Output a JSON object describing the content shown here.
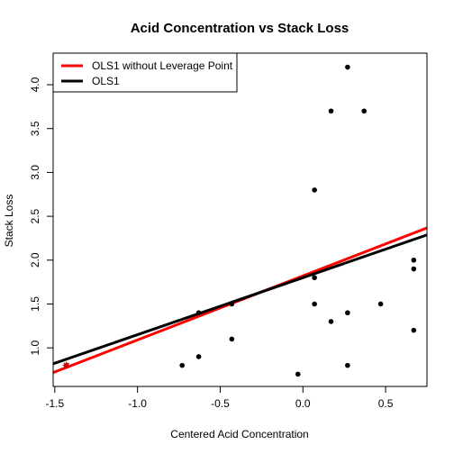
{
  "chart_data": {
    "type": "scatter",
    "title": "Acid Concentration vs Stack Loss",
    "xlabel": "Centered Acid Concentration",
    "ylabel": "Stack Loss",
    "xlim": [
      -1.51,
      0.75
    ],
    "ylim": [
      0.56,
      4.36
    ],
    "x_ticks": [
      -1.5,
      -1.0,
      -0.5,
      0.0,
      0.5
    ],
    "x_tick_labels": [
      "-1.5",
      "-1.0",
      "-0.5",
      "0.0",
      "0.5"
    ],
    "y_ticks": [
      1.0,
      1.5,
      2.0,
      2.5,
      3.0,
      3.5,
      4.0
    ],
    "y_tick_labels": [
      "1.0",
      "1.5",
      "2.0",
      "2.5",
      "3.0",
      "3.5",
      "4.0"
    ],
    "grid": false,
    "legend_position": "top-left",
    "points": [
      {
        "x": 0.27,
        "y": 4.2
      },
      {
        "x": 0.17,
        "y": 3.7
      },
      {
        "x": 0.37,
        "y": 3.7
      },
      {
        "x": 0.07,
        "y": 2.8
      },
      {
        "x": 0.67,
        "y": 2.0
      },
      {
        "x": 0.67,
        "y": 1.9
      },
      {
        "x": 0.07,
        "y": 1.8
      },
      {
        "x": 0.07,
        "y": 1.5
      },
      {
        "x": 0.47,
        "y": 1.5
      },
      {
        "x": -0.43,
        "y": 1.5
      },
      {
        "x": -0.63,
        "y": 1.4
      },
      {
        "x": 0.27,
        "y": 1.4
      },
      {
        "x": 0.17,
        "y": 1.3
      },
      {
        "x": 0.67,
        "y": 1.2
      },
      {
        "x": -0.43,
        "y": 1.1
      },
      {
        "x": -0.63,
        "y": 0.9
      },
      {
        "x": -0.73,
        "y": 0.8
      },
      {
        "x": 0.27,
        "y": 0.8
      },
      {
        "x": -0.03,
        "y": 0.7
      }
    ],
    "leverage_point": {
      "x": -1.43,
      "y": 0.8,
      "color": "#cc0000"
    },
    "point_color": "#000000",
    "series": [
      {
        "name": "OLS1 without Leverage Point",
        "color": "#ff0000",
        "intercept": 1.82,
        "slope": 0.73
      },
      {
        "name": "OLS1",
        "color": "#000000",
        "intercept": 1.8,
        "slope": 0.65
      }
    ]
  }
}
